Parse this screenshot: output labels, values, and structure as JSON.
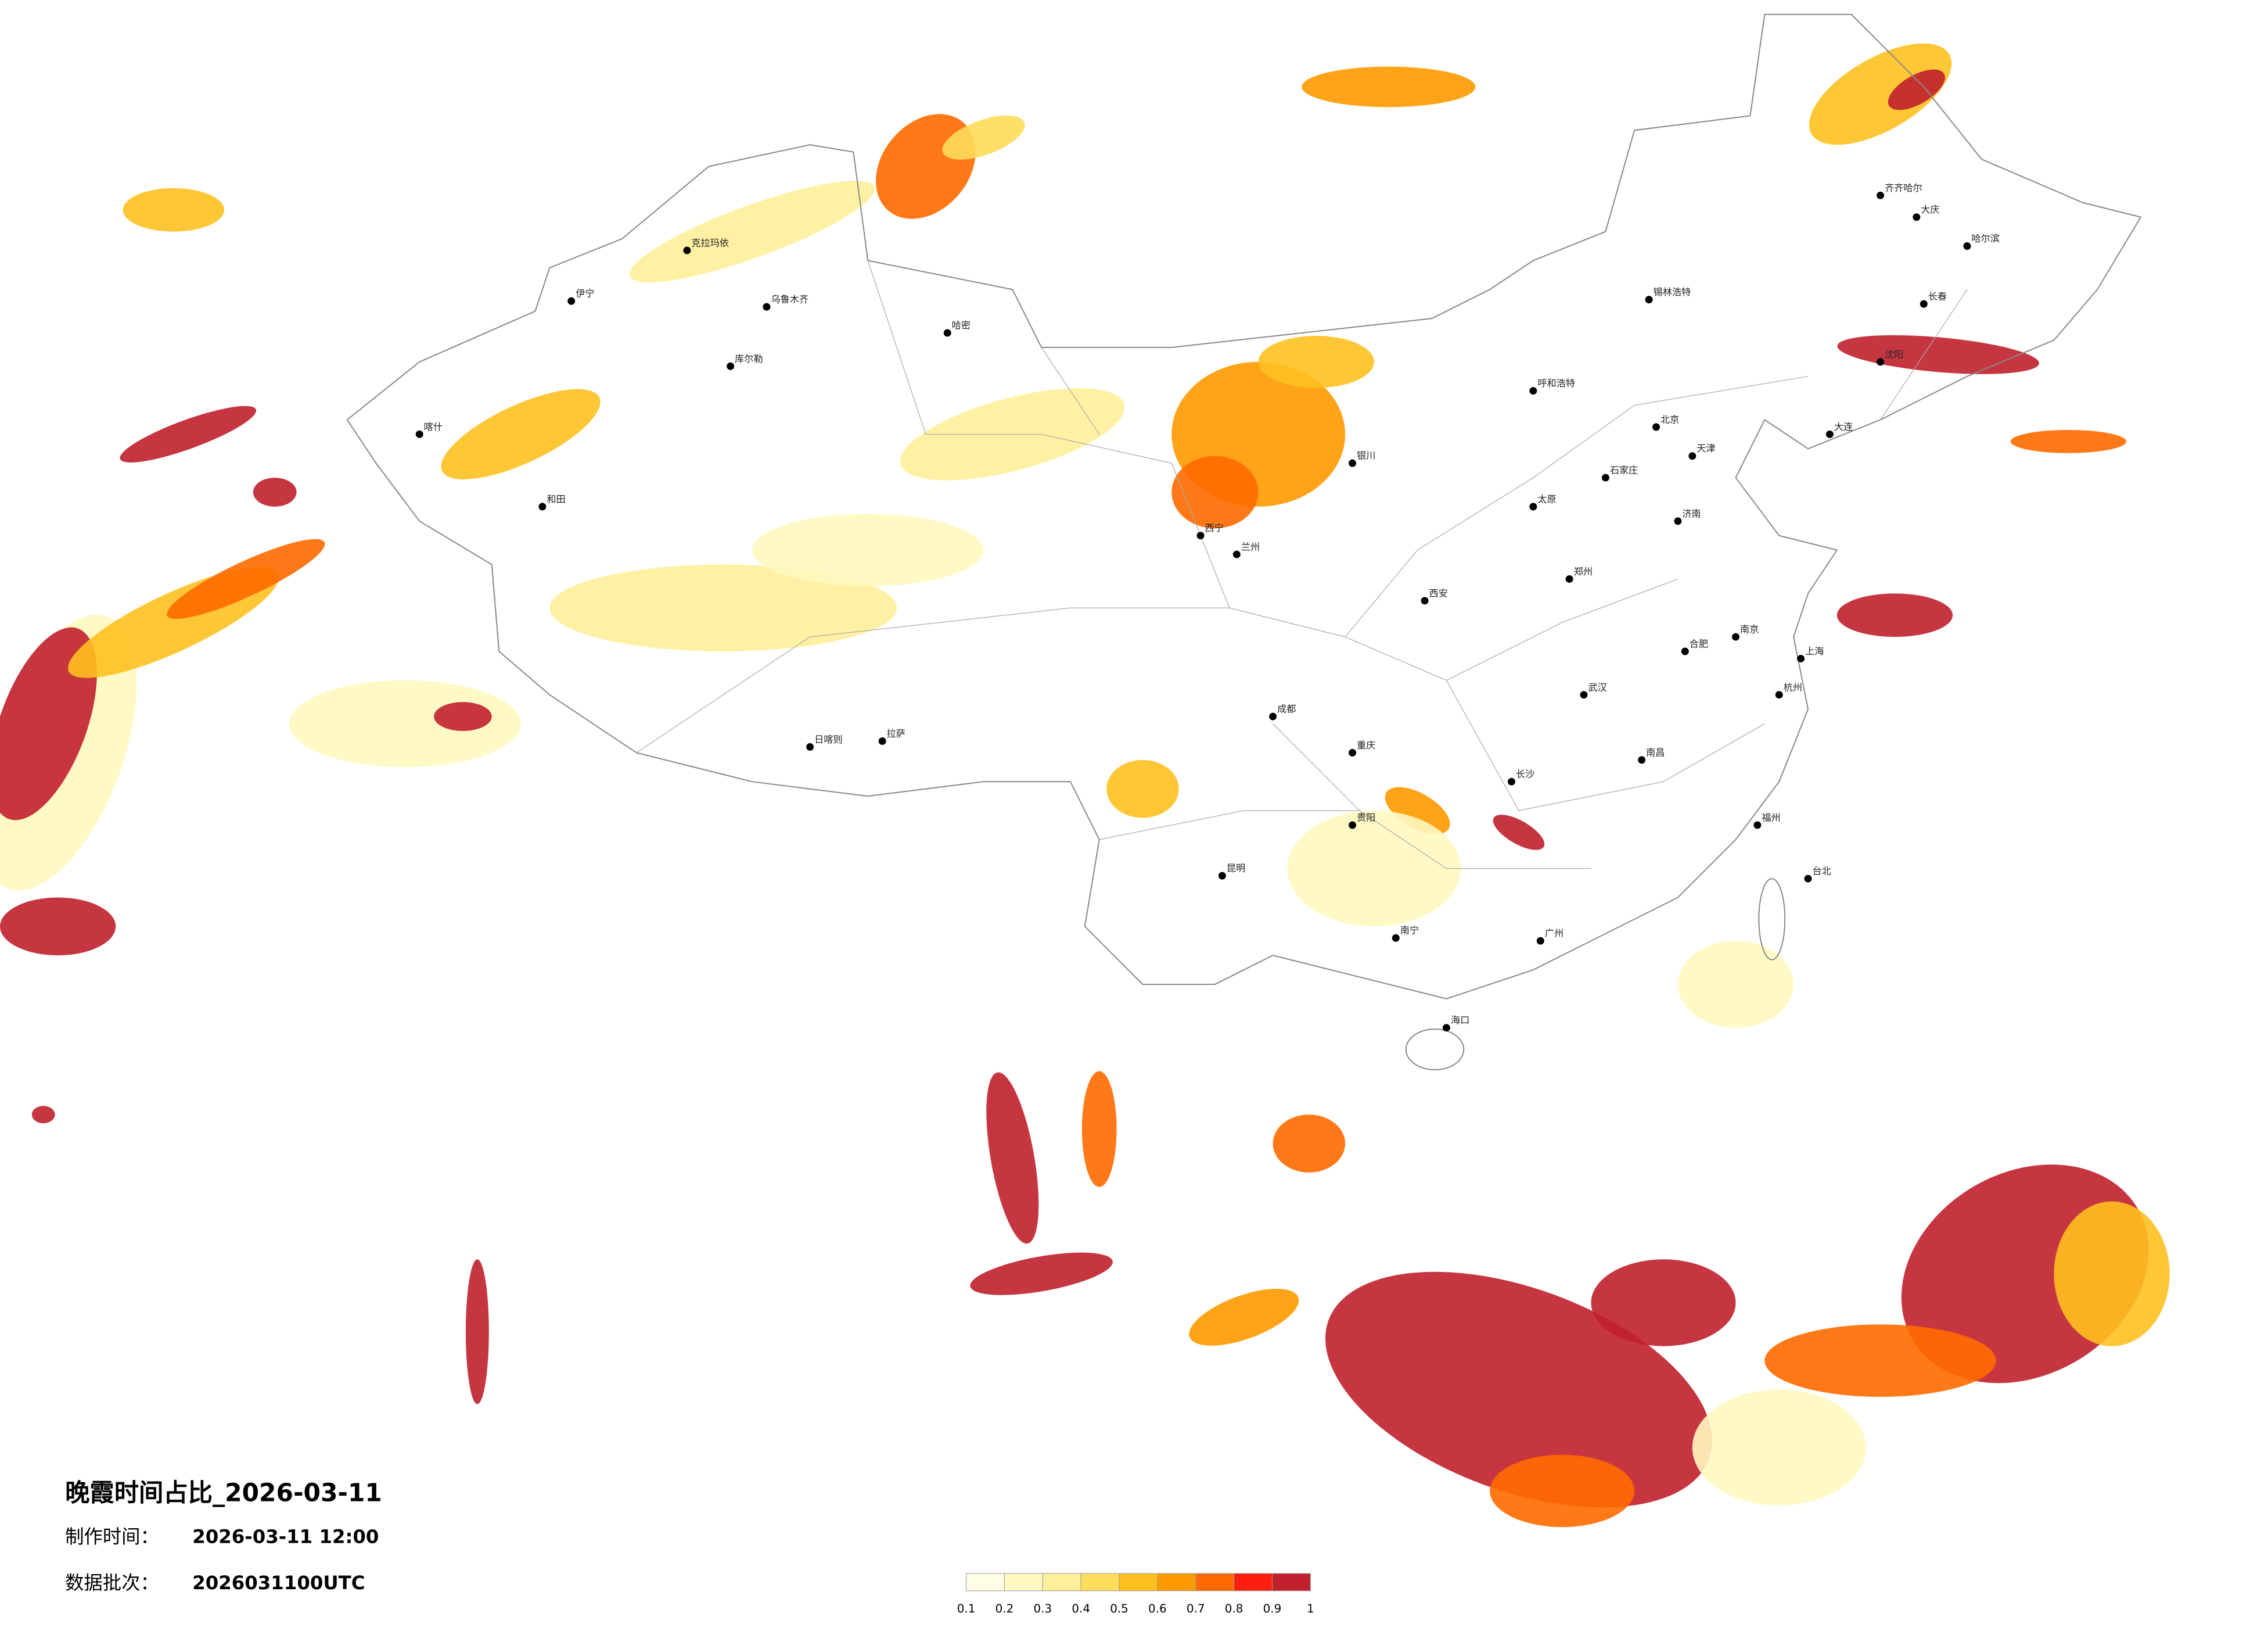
{
  "title": "晚霞时间占比_2026-03-11",
  "production_time": {
    "label": "制作时间：",
    "value": "2026-03-11 12:00"
  },
  "batch": {
    "label": "数据批次：",
    "value": "2026031100UTC"
  },
  "legend": {
    "ticks": [
      0.1,
      0.2,
      0.3,
      0.4,
      0.5,
      0.6,
      0.7,
      0.8,
      0.9,
      1
    ],
    "colors": [
      "#fffde6",
      "#fff8c0",
      "#fff09a",
      "#ffdc5a",
      "#ffc020",
      "#ff9a00",
      "#ff6a00",
      "#ff1e10",
      "#c0202c"
    ]
  },
  "cities": [
    "乌鲁木齐",
    "克拉玛依",
    "伊宁",
    "库尔勒",
    "喀什",
    "和田",
    "哈密",
    "日喀则",
    "拉萨",
    "西宁",
    "兰州",
    "成都",
    "重庆",
    "昆明",
    "贵阳",
    "南宁",
    "广州",
    "长沙",
    "武汉",
    "郑州",
    "北京",
    "天津",
    "石家庄",
    "太原",
    "呼和浩特",
    "银川",
    "西安",
    "济南",
    "南京",
    "上海",
    "杭州",
    "福州",
    "台北",
    "南昌",
    "合肥",
    "哈尔滨",
    "长春",
    "沈阳",
    "大连",
    "海口",
    "锡林浩特",
    "大庆",
    "齐齐哈尔"
  ]
}
